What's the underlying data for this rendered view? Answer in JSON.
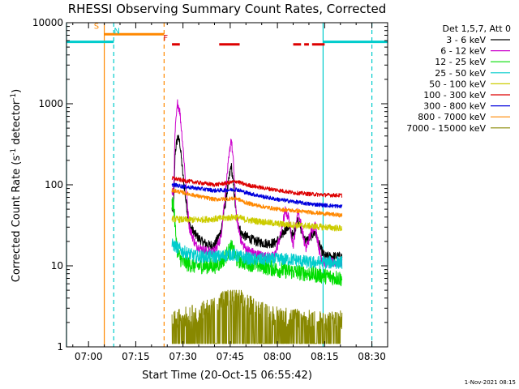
{
  "chart_data": {
    "type": "line",
    "title": "RHESSI Observing Summary Count Rates, Corrected",
    "xlabel": "Start Time (20-Oct-15 06:55:42)",
    "ylabel_main": "Corrected Count Rate (s",
    "ylabel_sup": "-1",
    "ylabel_mid": " detector",
    "ylabel_end": ")",
    "footer": "1-Nov-2021 08:15",
    "x_axis": {
      "unit": "minutes after 07:00 UT",
      "range": [
        -7,
        95
      ],
      "ticks": [
        {
          "value": 0,
          "label": "07:00"
        },
        {
          "value": 15,
          "label": "07:15"
        },
        {
          "value": 30,
          "label": "07:30"
        },
        {
          "value": 45,
          "label": "07:45"
        },
        {
          "value": 60,
          "label": "08:00"
        },
        {
          "value": 75,
          "label": "08:15"
        },
        {
          "value": 90,
          "label": "08:30"
        }
      ]
    },
    "y_axis": {
      "scale": "log",
      "range": [
        1,
        10000
      ],
      "ticks": [
        {
          "value": 1,
          "label": "1"
        },
        {
          "value": 10,
          "label": "10"
        },
        {
          "value": 100,
          "label": "100"
        },
        {
          "value": 1000,
          "label": "1000"
        },
        {
          "value": 10000,
          "label": "10000"
        }
      ]
    },
    "legend_header": "Det 1,5,7, Att 0",
    "series": [
      {
        "name": "3 - 6 keV",
        "color": "#000000",
        "noise": 0.06,
        "points": [
          [
            27,
            50
          ],
          [
            27.5,
            250
          ],
          [
            28.3,
            390
          ],
          [
            29,
            330
          ],
          [
            30,
            130
          ],
          [
            31,
            60
          ],
          [
            32,
            32
          ],
          [
            34,
            24
          ],
          [
            36,
            20
          ],
          [
            38,
            18
          ],
          [
            40,
            18
          ],
          [
            42,
            26
          ],
          [
            44,
            80
          ],
          [
            45.3,
            175
          ],
          [
            46,
            100
          ],
          [
            47,
            40
          ],
          [
            48.5,
            25
          ],
          [
            50,
            23
          ],
          [
            53,
            20
          ],
          [
            56,
            19
          ],
          [
            59,
            19
          ],
          [
            61,
            22
          ],
          [
            62.5,
            28
          ],
          [
            63.5,
            30
          ],
          [
            65,
            23
          ],
          [
            66.5,
            38
          ],
          [
            67.5,
            28
          ],
          [
            69,
            20
          ],
          [
            71,
            24
          ],
          [
            72,
            26
          ],
          [
            73.5,
            17
          ],
          [
            75,
            13
          ],
          [
            78,
            13
          ],
          [
            80,
            13
          ]
        ]
      },
      {
        "name": "6 - 12 keV",
        "color": "#cc00cc",
        "noise": 0.06,
        "points": [
          [
            27,
            80
          ],
          [
            27.5,
            450
          ],
          [
            28.3,
            1050
          ],
          [
            29,
            800
          ],
          [
            30,
            300
          ],
          [
            31,
            90
          ],
          [
            32,
            30
          ],
          [
            34,
            18
          ],
          [
            36,
            16
          ],
          [
            38,
            15
          ],
          [
            40,
            15
          ],
          [
            42,
            22
          ],
          [
            44,
            130
          ],
          [
            45.3,
            380
          ],
          [
            46,
            190
          ],
          [
            47,
            40
          ],
          [
            48.5,
            20
          ],
          [
            50,
            16
          ],
          [
            53,
            14
          ],
          [
            56,
            13
          ],
          [
            59,
            13
          ],
          [
            61,
            24
          ],
          [
            62.5,
            48
          ],
          [
            63.5,
            40
          ],
          [
            65,
            18
          ],
          [
            66.5,
            48
          ],
          [
            67.5,
            32
          ],
          [
            69,
            16
          ],
          [
            71,
            28
          ],
          [
            72,
            32
          ],
          [
            73.5,
            14
          ],
          [
            75,
            11
          ],
          [
            78,
            11
          ],
          [
            80,
            11
          ]
        ]
      },
      {
        "name": "12 - 25 keV",
        "color": "#00dd00",
        "noise": 0.1,
        "points": [
          [
            27,
            60
          ],
          [
            27.5,
            30
          ],
          [
            28.3,
            14
          ],
          [
            30,
            11
          ],
          [
            34,
            10
          ],
          [
            38,
            10
          ],
          [
            40,
            10
          ],
          [
            42,
            11
          ],
          [
            44,
            14
          ],
          [
            45.5,
            17
          ],
          [
            47,
            12
          ],
          [
            50,
            11
          ],
          [
            55,
            10
          ],
          [
            60,
            9
          ],
          [
            65,
            8.5
          ],
          [
            70,
            8
          ],
          [
            75,
            7.5
          ],
          [
            80,
            7
          ]
        ]
      },
      {
        "name": "25 - 50 keV",
        "color": "#00cccc",
        "noise": 0.08,
        "points": [
          [
            27,
            18
          ],
          [
            28,
            17
          ],
          [
            30,
            15
          ],
          [
            34,
            13
          ],
          [
            38,
            13
          ],
          [
            42,
            13
          ],
          [
            45,
            14
          ],
          [
            48,
            13
          ],
          [
            52,
            12
          ],
          [
            56,
            12
          ],
          [
            60,
            12
          ],
          [
            65,
            12
          ],
          [
            70,
            11
          ],
          [
            75,
            11
          ],
          [
            80,
            11
          ]
        ]
      },
      {
        "name": "50 - 100 keV",
        "color": "#cccc00",
        "noise": 0.04,
        "points": [
          [
            27,
            38
          ],
          [
            30,
            37
          ],
          [
            35,
            37
          ],
          [
            40,
            38
          ],
          [
            44,
            39
          ],
          [
            47,
            40
          ],
          [
            50,
            37
          ],
          [
            55,
            35
          ],
          [
            60,
            33
          ],
          [
            65,
            32
          ],
          [
            70,
            31
          ],
          [
            75,
            30
          ],
          [
            80,
            29
          ]
        ]
      },
      {
        "name": "100 - 300 keV",
        "color": "#dd0000",
        "noise": 0.025,
        "points": [
          [
            27,
            120
          ],
          [
            30,
            113
          ],
          [
            35,
            106
          ],
          [
            40,
            100
          ],
          [
            44,
            105
          ],
          [
            47,
            110
          ],
          [
            50,
            100
          ],
          [
            55,
            92
          ],
          [
            60,
            86
          ],
          [
            65,
            80
          ],
          [
            70,
            77
          ],
          [
            75,
            75
          ],
          [
            80,
            74
          ]
        ]
      },
      {
        "name": "300 - 800 keV",
        "color": "#0000dd",
        "noise": 0.025,
        "points": [
          [
            27,
            100
          ],
          [
            30,
            95
          ],
          [
            35,
            90
          ],
          [
            40,
            85
          ],
          [
            44,
            86
          ],
          [
            47,
            88
          ],
          [
            50,
            80
          ],
          [
            55,
            72
          ],
          [
            60,
            66
          ],
          [
            65,
            62
          ],
          [
            70,
            58
          ],
          [
            75,
            56
          ],
          [
            80,
            54
          ]
        ]
      },
      {
        "name": "800 - 7000 keV",
        "color": "#ff8800",
        "noise": 0.025,
        "points": [
          [
            27,
            85
          ],
          [
            30,
            80
          ],
          [
            35,
            72
          ],
          [
            40,
            66
          ],
          [
            44,
            67
          ],
          [
            47,
            68
          ],
          [
            50,
            60
          ],
          [
            55,
            54
          ],
          [
            60,
            50
          ],
          [
            65,
            48
          ],
          [
            70,
            46
          ],
          [
            75,
            44
          ],
          [
            80,
            42
          ]
        ]
      },
      {
        "name": "7000 - 15000 keV",
        "color": "#888800",
        "noise": 0,
        "points": [
          [
            27,
            2
          ],
          [
            35,
            2.5
          ],
          [
            40,
            3
          ],
          [
            43,
            3.6
          ],
          [
            46,
            4
          ],
          [
            49,
            3.5
          ],
          [
            53,
            2.8
          ],
          [
            58,
            2.3
          ],
          [
            63,
            2.2
          ],
          [
            68,
            2.1
          ],
          [
            75,
            2
          ],
          [
            80,
            2
          ]
        ]
      }
    ],
    "annotations": [
      {
        "label": "S",
        "color": "#ff8800",
        "x": 2.5,
        "y": 8400
      },
      {
        "label": "N",
        "color": "#00cccc",
        "x": 9,
        "y": 7300
      },
      {
        "label": "F",
        "color": "#dd0000",
        "x": 24.5,
        "y": 6000
      }
    ],
    "flag_bars": [
      {
        "id": "saa",
        "color": "#ff8800",
        "y": 7200,
        "from": 5,
        "to": 24
      },
      {
        "id": "night-1",
        "color": "#00cccc",
        "y": 5800,
        "from": -7,
        "to": 8
      },
      {
        "id": "night-2",
        "color": "#00cccc",
        "y": 5800,
        "from": 74.5,
        "to": 95
      },
      {
        "id": "flare-1",
        "color": "#dd0000",
        "y": 5400,
        "from": 26.5,
        "to": 29
      },
      {
        "id": "flare-2",
        "color": "#dd0000",
        "y": 5400,
        "from": 41.5,
        "to": 48
      },
      {
        "id": "flare-3",
        "color": "#dd0000",
        "y": 5400,
        "from": 65,
        "to": 67.5
      },
      {
        "id": "flare-4",
        "color": "#dd0000",
        "y": 5400,
        "from": 68.5,
        "to": 70
      },
      {
        "id": "flare-5",
        "color": "#dd0000",
        "y": 5400,
        "from": 71,
        "to": 75
      }
    ],
    "vertical_lines": [
      {
        "id": "saa-start",
        "color": "#ff8800",
        "x": 5,
        "style": "solid"
      },
      {
        "id": "saa-end",
        "color": "#ff8800",
        "x": 24,
        "style": "dashed"
      },
      {
        "id": "night-start-1",
        "color": "#00cccc",
        "x": -7,
        "style": "solid"
      },
      {
        "id": "night-end-1",
        "color": "#00cccc",
        "x": 8,
        "style": "dashed"
      },
      {
        "id": "night-start-2",
        "color": "#00cccc",
        "x": 74.5,
        "style": "solid"
      },
      {
        "id": "night-end-2",
        "color": "#00cccc",
        "x": 90,
        "style": "dashed"
      }
    ],
    "data_x_range": [
      26.5,
      80.5
    ]
  }
}
